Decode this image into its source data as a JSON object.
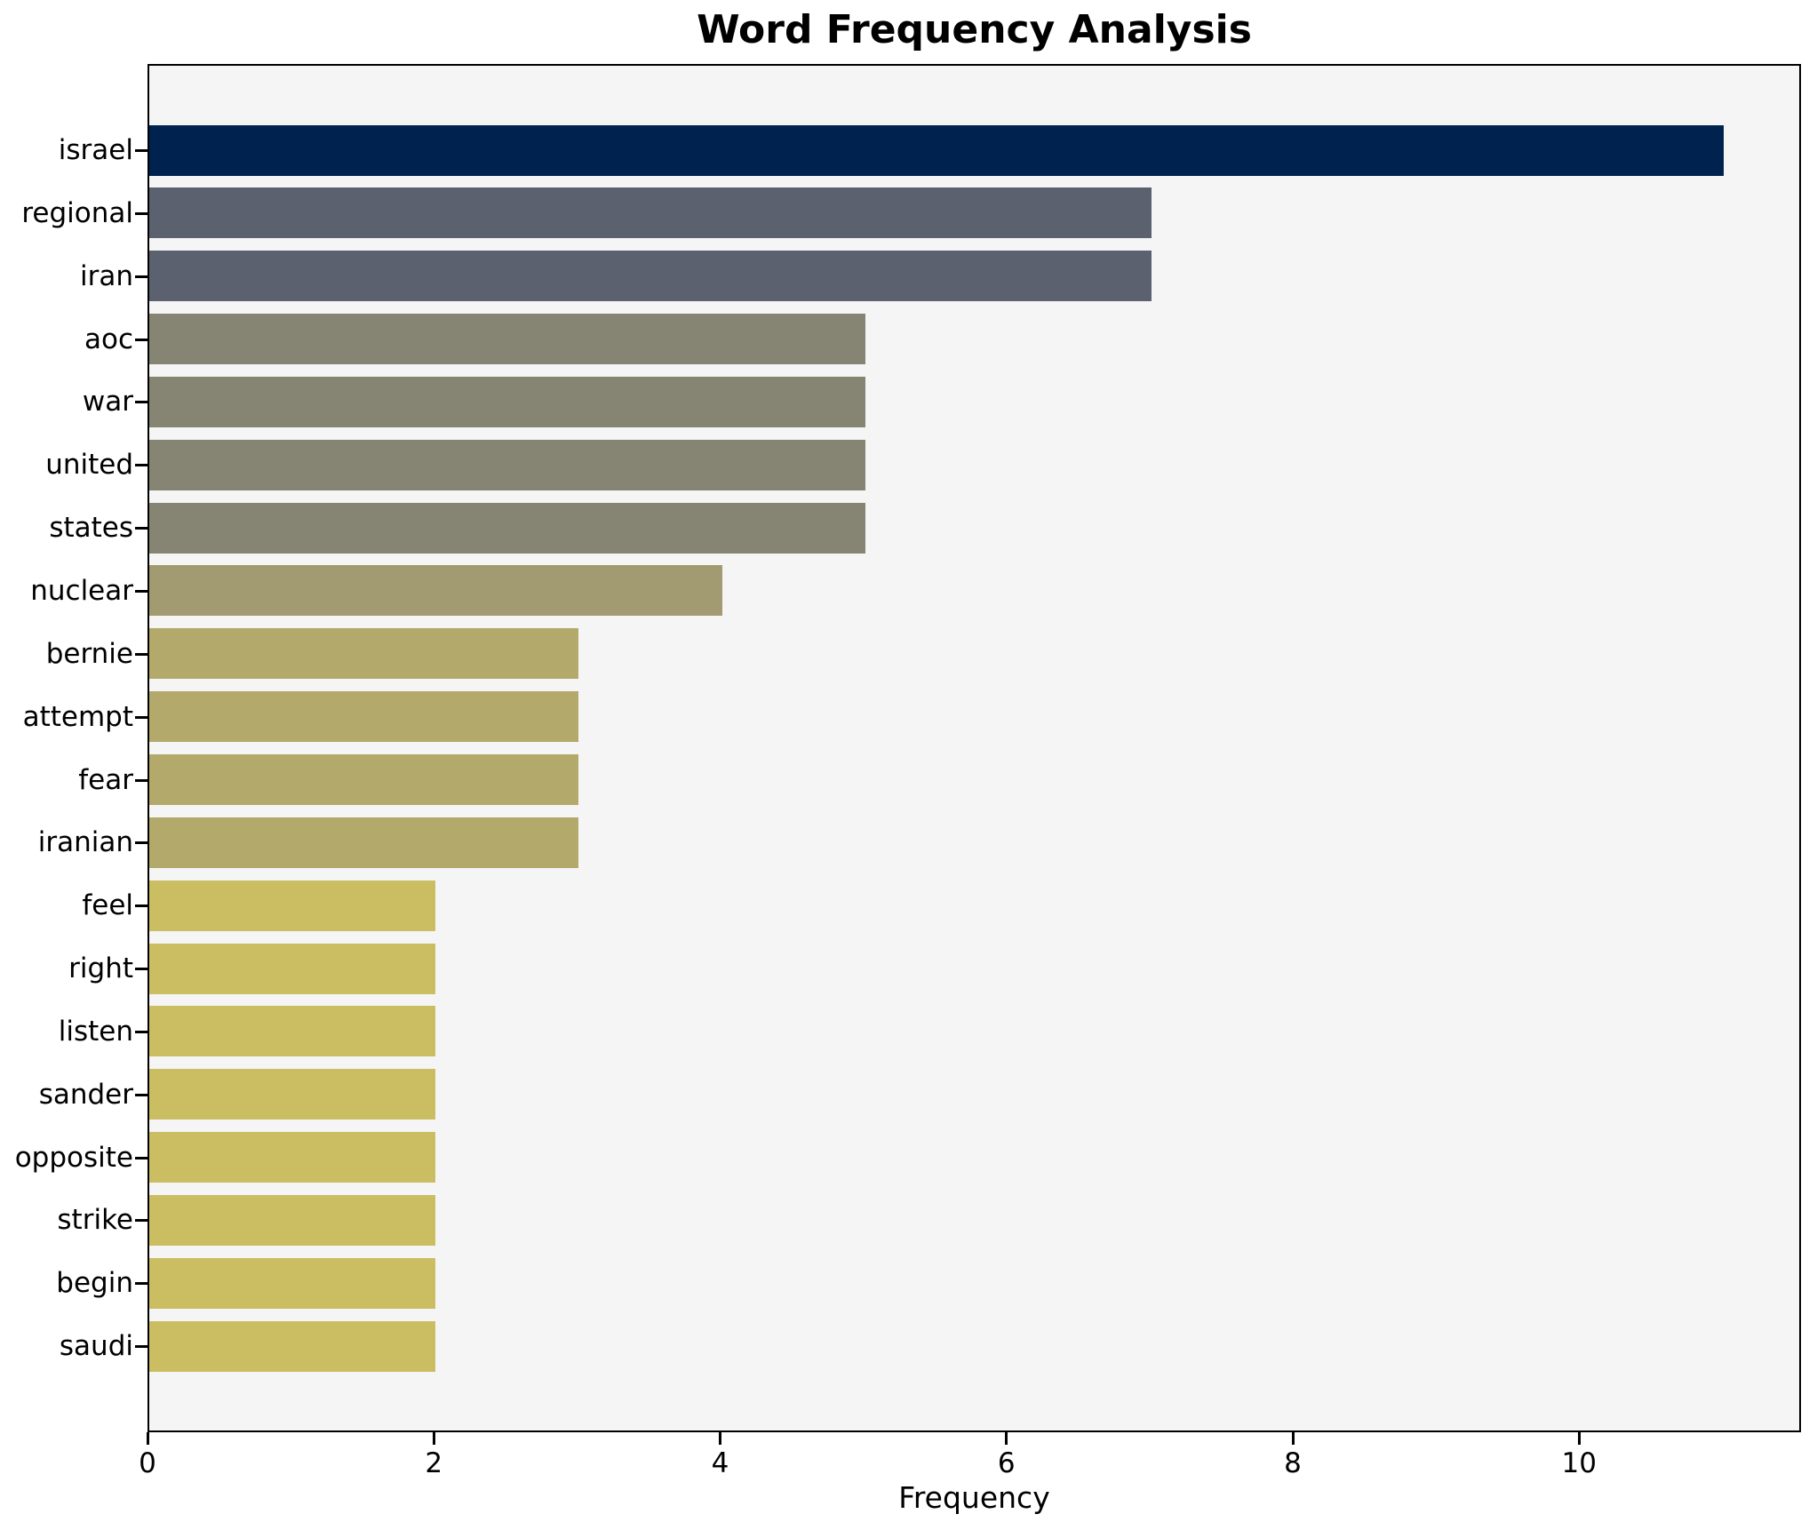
{
  "title": "Word Frequency Analysis",
  "chart_data": {
    "type": "bar",
    "orientation": "horizontal",
    "title": "Word Frequency Analysis",
    "xlabel": "Frequency",
    "ylabel": "",
    "categories": [
      "israel",
      "regional",
      "iran",
      "aoc",
      "war",
      "united",
      "states",
      "nuclear",
      "bernie",
      "attempt",
      "fear",
      "iranian",
      "feel",
      "right",
      "listen",
      "sander",
      "opposite",
      "strike",
      "begin",
      "saudi"
    ],
    "values": [
      11,
      7,
      7,
      5,
      5,
      5,
      5,
      4,
      3,
      3,
      3,
      3,
      2,
      2,
      2,
      2,
      2,
      2,
      2,
      2
    ],
    "bar_colors": [
      "#00224e",
      "#5c6170",
      "#5c6170",
      "#868473",
      "#868473",
      "#868473",
      "#868473",
      "#a29a70",
      "#b2a96a",
      "#b2a96a",
      "#b2a96a",
      "#b2a96a",
      "#cbbd62",
      "#cbbd62",
      "#cbbd62",
      "#cbbd62",
      "#cbbd62",
      "#cbbd62",
      "#cbbd62",
      "#cbbd62"
    ],
    "xlim": [
      0,
      11.55
    ],
    "xticks": [
      0,
      2,
      4,
      6,
      8,
      10
    ],
    "grid": false,
    "legend": null,
    "plot_background": "#f5f5f5",
    "spine_color": "#000000"
  }
}
